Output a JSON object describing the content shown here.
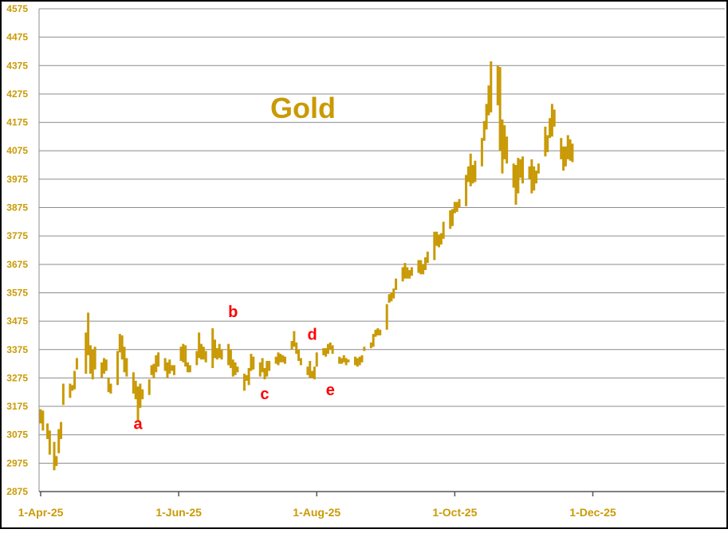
{
  "chart_data": {
    "type": "line",
    "style": "high-low bars",
    "title": "Gold",
    "series_color": "#C99A06",
    "title_color": "#C99A06",
    "tick_label_color": "#C99A06",
    "annotation_color": "#FF0000",
    "grid": true,
    "ylim": [
      2875,
      4575
    ],
    "y_ticks": [
      "4575",
      "4475",
      "4375",
      "4275",
      "4175",
      "4075",
      "3975",
      "3875",
      "3775",
      "3675",
      "3575",
      "3475",
      "3375",
      "3275",
      "3175",
      "3075",
      "2975",
      "2875"
    ],
    "x_ticks": [
      {
        "label": "1-Apr-25",
        "day": 0
      },
      {
        "label": "1-Jun-25",
        "day": 61
      },
      {
        "label": "1-Aug-25",
        "day": 122
      },
      {
        "label": "1-Oct-25",
        "day": 183
      },
      {
        "label": "1-Dec-25",
        "day": 244
      }
    ],
    "x_range_days": [
      0,
      305
    ],
    "annotations": [
      {
        "text": "a",
        "day": 43,
        "value": 3095
      },
      {
        "text": "b",
        "day": 85,
        "value": 3490
      },
      {
        "text": "c",
        "day": 99,
        "value": 3200
      },
      {
        "text": "d",
        "day": 120,
        "value": 3410
      },
      {
        "text": "e",
        "day": 128,
        "value": 3215
      }
    ],
    "series": [
      {
        "bars": [
          [
            0,
            3115,
            3165
          ],
          [
            1,
            3090,
            3160
          ],
          [
            3,
            3060,
            3115
          ],
          [
            4,
            3005,
            3090
          ],
          [
            6,
            2950,
            3050
          ],
          [
            7,
            2965,
            3000
          ],
          [
            8,
            3010,
            3095
          ],
          [
            9,
            3060,
            3120
          ],
          [
            10,
            3180,
            3255
          ],
          [
            13,
            3205,
            3255
          ],
          [
            14,
            3230,
            3250
          ],
          [
            15,
            3235,
            3300
          ],
          [
            16,
            3305,
            3345
          ],
          [
            20,
            3290,
            3435
          ],
          [
            21,
            3355,
            3505
          ],
          [
            22,
            3290,
            3390
          ],
          [
            23,
            3270,
            3375
          ],
          [
            24,
            3305,
            3385
          ],
          [
            27,
            3275,
            3330
          ],
          [
            28,
            3290,
            3345
          ],
          [
            29,
            3300,
            3340
          ],
          [
            30,
            3225,
            3275
          ],
          [
            31,
            3220,
            3255
          ],
          [
            34,
            3250,
            3370
          ],
          [
            35,
            3365,
            3430
          ],
          [
            36,
            3340,
            3425
          ],
          [
            37,
            3295,
            3385
          ],
          [
            38,
            3280,
            3345
          ],
          [
            41,
            3220,
            3295
          ],
          [
            42,
            3200,
            3265
          ],
          [
            43,
            3120,
            3245
          ],
          [
            44,
            3170,
            3255
          ],
          [
            45,
            3200,
            3235
          ],
          [
            48,
            3215,
            3270
          ],
          [
            49,
            3285,
            3320
          ],
          [
            50,
            3275,
            3325
          ],
          [
            51,
            3295,
            3355
          ],
          [
            52,
            3315,
            3365
          ],
          [
            55,
            3300,
            3345
          ],
          [
            56,
            3275,
            3330
          ],
          [
            57,
            3290,
            3340
          ],
          [
            58,
            3300,
            3320
          ],
          [
            59,
            3285,
            3320
          ],
          [
            62,
            3335,
            3385
          ],
          [
            63,
            3330,
            3395
          ],
          [
            64,
            3315,
            3390
          ],
          [
            65,
            3295,
            3330
          ],
          [
            66,
            3295,
            3320
          ],
          [
            69,
            3320,
            3370
          ],
          [
            70,
            3345,
            3435
          ],
          [
            71,
            3340,
            3395
          ],
          [
            72,
            3340,
            3385
          ],
          [
            73,
            3330,
            3370
          ],
          [
            76,
            3310,
            3450
          ],
          [
            77,
            3345,
            3410
          ],
          [
            78,
            3340,
            3380
          ],
          [
            79,
            3345,
            3395
          ],
          [
            80,
            3340,
            3375
          ],
          [
            83,
            3320,
            3395
          ],
          [
            84,
            3310,
            3375
          ],
          [
            85,
            3280,
            3340
          ],
          [
            86,
            3285,
            3330
          ],
          [
            87,
            3295,
            3315
          ],
          [
            90,
            3230,
            3290
          ],
          [
            91,
            3265,
            3285
          ],
          [
            92,
            3250,
            3310
          ],
          [
            93,
            3300,
            3360
          ],
          [
            94,
            3305,
            3350
          ],
          [
            97,
            3280,
            3330
          ],
          [
            98,
            3295,
            3345
          ],
          [
            99,
            3270,
            3310
          ],
          [
            100,
            3280,
            3335
          ],
          [
            101,
            3300,
            3335
          ],
          [
            104,
            3325,
            3350
          ],
          [
            105,
            3320,
            3365
          ],
          [
            106,
            3330,
            3360
          ],
          [
            107,
            3330,
            3355
          ],
          [
            108,
            3325,
            3350
          ],
          [
            111,
            3375,
            3405
          ],
          [
            112,
            3385,
            3440
          ],
          [
            113,
            3360,
            3400
          ],
          [
            114,
            3335,
            3375
          ],
          [
            115,
            3320,
            3345
          ],
          [
            118,
            3285,
            3315
          ],
          [
            119,
            3275,
            3335
          ],
          [
            120,
            3275,
            3300
          ],
          [
            121,
            3270,
            3315
          ],
          [
            122,
            3315,
            3365
          ],
          [
            125,
            3355,
            3380
          ],
          [
            126,
            3350,
            3380
          ],
          [
            127,
            3360,
            3395
          ],
          [
            128,
            3375,
            3400
          ],
          [
            129,
            3360,
            3390
          ],
          [
            132,
            3325,
            3350
          ],
          [
            133,
            3325,
            3345
          ],
          [
            134,
            3330,
            3355
          ],
          [
            135,
            3320,
            3345
          ],
          [
            136,
            3330,
            3340
          ],
          [
            139,
            3320,
            3350
          ],
          [
            140,
            3315,
            3345
          ],
          [
            141,
            3320,
            3350
          ],
          [
            142,
            3330,
            3355
          ],
          [
            143,
            3370,
            3385
          ],
          [
            146,
            3380,
            3400
          ],
          [
            147,
            3385,
            3430
          ],
          [
            148,
            3420,
            3445
          ],
          [
            149,
            3425,
            3450
          ],
          [
            150,
            3425,
            3445
          ],
          [
            153,
            3445,
            3535
          ],
          [
            154,
            3540,
            3570
          ],
          [
            155,
            3545,
            3575
          ],
          [
            156,
            3555,
            3590
          ],
          [
            157,
            3585,
            3625
          ],
          [
            160,
            3615,
            3665
          ],
          [
            161,
            3625,
            3680
          ],
          [
            162,
            3625,
            3665
          ],
          [
            163,
            3625,
            3655
          ],
          [
            164,
            3635,
            3665
          ],
          [
            167,
            3645,
            3690
          ],
          [
            168,
            3640,
            3690
          ],
          [
            169,
            3640,
            3675
          ],
          [
            170,
            3655,
            3700
          ],
          [
            171,
            3680,
            3720
          ],
          [
            174,
            3690,
            3790
          ],
          [
            175,
            3740,
            3790
          ],
          [
            176,
            3735,
            3780
          ],
          [
            177,
            3745,
            3785
          ],
          [
            178,
            3765,
            3825
          ],
          [
            181,
            3800,
            3865
          ],
          [
            182,
            3810,
            3870
          ],
          [
            183,
            3855,
            3895
          ],
          [
            184,
            3860,
            3895
          ],
          [
            185,
            3875,
            3905
          ],
          [
            188,
            3880,
            3990
          ],
          [
            189,
            3965,
            4020
          ],
          [
            190,
            3950,
            4065
          ],
          [
            191,
            3960,
            4025
          ],
          [
            192,
            3965,
            4040
          ],
          [
            195,
            4020,
            4120
          ],
          [
            196,
            4110,
            4180
          ],
          [
            197,
            4150,
            4240
          ],
          [
            198,
            4200,
            4305
          ],
          [
            199,
            4210,
            4390
          ],
          [
            202,
            4235,
            4375
          ],
          [
            203,
            4075,
            4370
          ],
          [
            204,
            3995,
            4185
          ],
          [
            205,
            4045,
            4165
          ],
          [
            206,
            4030,
            4125
          ],
          [
            209,
            3945,
            4030
          ],
          [
            210,
            3885,
            4025
          ],
          [
            211,
            3925,
            4050
          ],
          [
            212,
            3980,
            4045
          ],
          [
            213,
            3960,
            4055
          ],
          [
            216,
            3975,
            4020
          ],
          [
            217,
            3925,
            4045
          ],
          [
            218,
            3935,
            4020
          ],
          [
            219,
            3960,
            4005
          ],
          [
            220,
            3995,
            4030
          ],
          [
            223,
            4055,
            4160
          ],
          [
            224,
            4070,
            4130
          ],
          [
            225,
            4120,
            4190
          ],
          [
            226,
            4125,
            4240
          ],
          [
            227,
            4160,
            4220
          ],
          [
            230,
            4045,
            4120
          ],
          [
            231,
            4005,
            4090
          ],
          [
            232,
            4020,
            4090
          ],
          [
            233,
            4045,
            4130
          ],
          [
            234,
            4040,
            4115
          ],
          [
            235,
            4035,
            4100
          ]
        ]
      }
    ]
  }
}
